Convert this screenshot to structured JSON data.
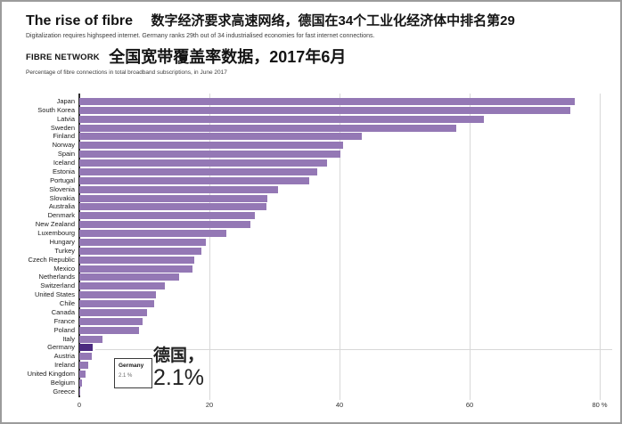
{
  "header": {
    "title_en": "The rise of fibre",
    "title_zh": "数字经济要求高速网络，德国在34个工业化经济体中排名第29",
    "subtitle": "Digitalization requires highspeed internet. Germany ranks 29th out of 34 industrialised economies for fast internet connections.",
    "kicker_en": "FIBRE NETWORK",
    "kicker_zh": "全国宽带覆盖率数据，2017年6月",
    "description": "Percentage of fibre connections in total broadband subscriptions, in June 2017"
  },
  "chart_data": {
    "type": "bar",
    "orientation": "horizontal",
    "title": "FIBRE NETWORK — Percentage of fibre connections in total broadband subscriptions, in June 2017",
    "categories": [
      "Japan",
      "South Korea",
      "Latvia",
      "Sweden",
      "Finland",
      "Norway",
      "Spain",
      "Iceland",
      "Estonia",
      "Portugal",
      "Slovenia",
      "Slovakia",
      "Australia",
      "Denmark",
      "New Zealand",
      "Luxembourg",
      "Hungary",
      "Turkey",
      "Czech Republic",
      "Mexico",
      "Netherlands",
      "Switzerland",
      "United States",
      "Chile",
      "Canada",
      "France",
      "Poland",
      "Italy",
      "Germany",
      "Austria",
      "Ireland",
      "United Kingdom",
      "Belgium",
      "Greece"
    ],
    "values": [
      76.1,
      75.5,
      62.2,
      58.0,
      43.4,
      40.6,
      40.1,
      38.1,
      36.6,
      35.4,
      30.5,
      28.9,
      28.7,
      27.0,
      26.3,
      22.6,
      19.5,
      18.7,
      17.7,
      17.4,
      15.4,
      13.1,
      11.8,
      11.5,
      10.4,
      9.7,
      9.2,
      3.5,
      2.1,
      1.9,
      1.4,
      1.0,
      0.4,
      0.2
    ],
    "xlim": [
      0,
      80
    ],
    "x_ticks": [
      0,
      20,
      40,
      60,
      80
    ],
    "x_tick_labels": [
      "0",
      "20",
      "40",
      "60",
      "80 %"
    ],
    "grid": true,
    "legend": "none",
    "bar_color": "#9478b5",
    "highlight_color": "#4b2a80",
    "highlight_country": "Germany",
    "annotation": {
      "box_title": "Germany",
      "box_value": "2.1 %",
      "label_zh": "德国，",
      "value_large": "2.1%"
    }
  }
}
